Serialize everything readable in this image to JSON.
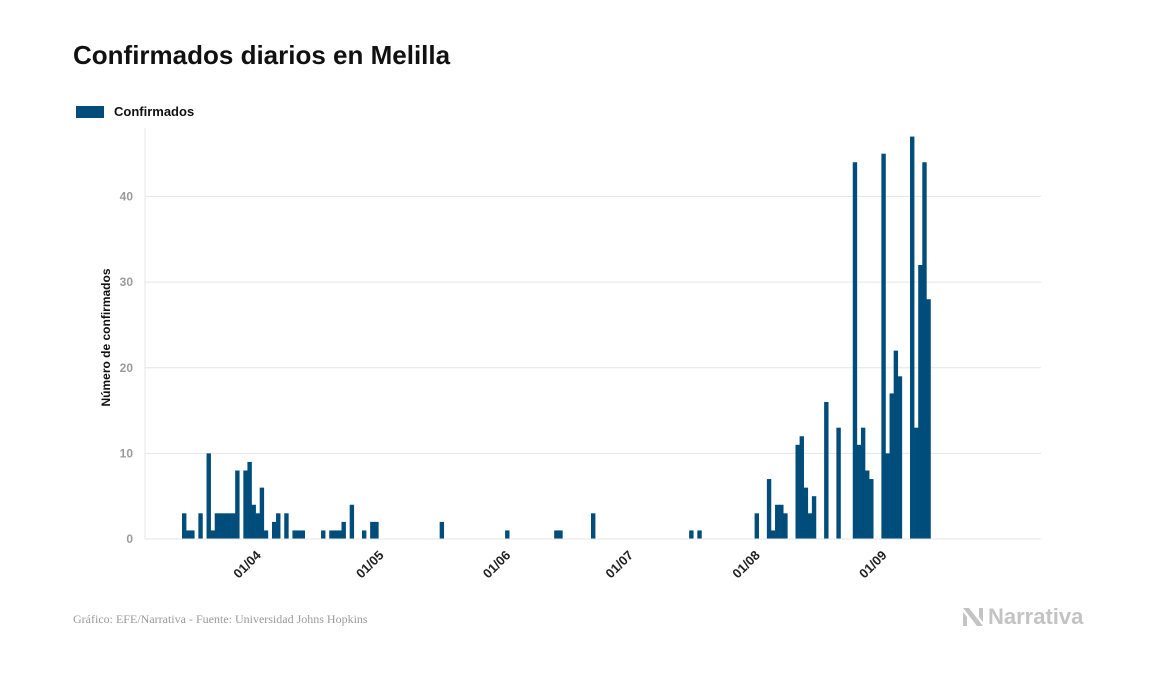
{
  "header": {
    "title": "Confirmados diarios en Melilla"
  },
  "footer": {
    "source": "Gráfico: EFE/Narrativa - Fuente: Universidad Johns Hopkins",
    "brand": "Narrativa",
    "brand_icon": "narrativa-logo-icon"
  },
  "colors": {
    "bar": "#004c7a",
    "grid": "#e6e6e6",
    "tick_text": "#9a9a9a",
    "axis_text": "#222222",
    "brand": "#c3c3c3"
  },
  "chart_data": {
    "type": "bar",
    "title": "Confirmados diarios en Melilla",
    "ylabel": "Número de confirmados",
    "xlabel": "",
    "ylim": [
      0,
      48
    ],
    "yticks": [
      0,
      10,
      20,
      30,
      40
    ],
    "grid": true,
    "legend_position": "top-left",
    "x_range": [
      "2020-03-13",
      "2020-09-28"
    ],
    "xticks": [
      {
        "date": "2020-04-01",
        "label": "01/04"
      },
      {
        "date": "2020-05-01",
        "label": "01/05"
      },
      {
        "date": "2020-06-01",
        "label": "01/06"
      },
      {
        "date": "2020-07-01",
        "label": "01/07"
      },
      {
        "date": "2020-08-01",
        "label": "01/08"
      },
      {
        "date": "2020-09-01",
        "label": "01/09"
      }
    ],
    "series": [
      {
        "name": "Confirmados",
        "color": "#004c7a",
        "points": [
          [
            "2020-03-13",
            3
          ],
          [
            "2020-03-14",
            1
          ],
          [
            "2020-03-15",
            1
          ],
          [
            "2020-03-17",
            3
          ],
          [
            "2020-03-19",
            10
          ],
          [
            "2020-03-20",
            1
          ],
          [
            "2020-03-21",
            3
          ],
          [
            "2020-03-22",
            3
          ],
          [
            "2020-03-23",
            3
          ],
          [
            "2020-03-24",
            3
          ],
          [
            "2020-03-25",
            3
          ],
          [
            "2020-03-26",
            8
          ],
          [
            "2020-03-28",
            8
          ],
          [
            "2020-03-29",
            9
          ],
          [
            "2020-03-30",
            4
          ],
          [
            "2020-03-31",
            3
          ],
          [
            "2020-04-01",
            6
          ],
          [
            "2020-04-02",
            1
          ],
          [
            "2020-04-04",
            2
          ],
          [
            "2020-04-05",
            3
          ],
          [
            "2020-04-07",
            3
          ],
          [
            "2020-04-09",
            1
          ],
          [
            "2020-04-10",
            1
          ],
          [
            "2020-04-11",
            1
          ],
          [
            "2020-04-16",
            1
          ],
          [
            "2020-04-18",
            1
          ],
          [
            "2020-04-19",
            1
          ],
          [
            "2020-04-20",
            1
          ],
          [
            "2020-04-21",
            2
          ],
          [
            "2020-04-23",
            4
          ],
          [
            "2020-04-26",
            1
          ],
          [
            "2020-04-28",
            2
          ],
          [
            "2020-04-29",
            2
          ],
          [
            "2020-05-15",
            2
          ],
          [
            "2020-05-31",
            1
          ],
          [
            "2020-06-12",
            1
          ],
          [
            "2020-06-13",
            1
          ],
          [
            "2020-06-21",
            3
          ],
          [
            "2020-07-15",
            1
          ],
          [
            "2020-07-17",
            1
          ],
          [
            "2020-07-31",
            3
          ],
          [
            "2020-08-03",
            7
          ],
          [
            "2020-08-04",
            1
          ],
          [
            "2020-08-05",
            4
          ],
          [
            "2020-08-06",
            4
          ],
          [
            "2020-08-07",
            3
          ],
          [
            "2020-08-10",
            11
          ],
          [
            "2020-08-11",
            12
          ],
          [
            "2020-08-12",
            6
          ],
          [
            "2020-08-13",
            3
          ],
          [
            "2020-08-14",
            5
          ],
          [
            "2020-08-17",
            16
          ],
          [
            "2020-08-20",
            13
          ],
          [
            "2020-08-24",
            44
          ],
          [
            "2020-08-25",
            11
          ],
          [
            "2020-08-26",
            13
          ],
          [
            "2020-08-27",
            8
          ],
          [
            "2020-08-28",
            7
          ],
          [
            "2020-08-31",
            45
          ],
          [
            "2020-09-01",
            10
          ],
          [
            "2020-09-02",
            17
          ],
          [
            "2020-09-03",
            22
          ],
          [
            "2020-09-04",
            19
          ],
          [
            "2020-09-07",
            47
          ],
          [
            "2020-09-08",
            13
          ],
          [
            "2020-09-09",
            32
          ],
          [
            "2020-09-10",
            44
          ],
          [
            "2020-09-11",
            28
          ]
        ]
      }
    ]
  }
}
